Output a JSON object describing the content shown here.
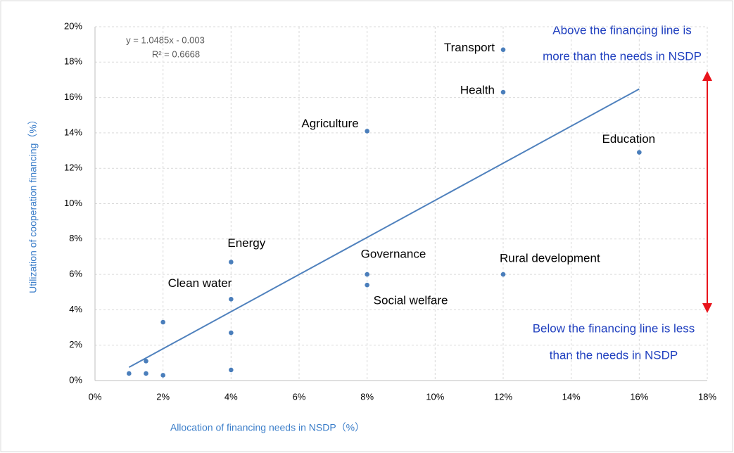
{
  "chart_data": {
    "type": "scatter",
    "x_label": "Allocation of financing needs in NSDP（%）",
    "y_label": "Utilization of cooperation financing（%）",
    "equation": "y = 1.0485x - 0.003",
    "r_squared": "R² = 0.6668",
    "annotation_above": [
      "Above the financing line is",
      "more than the needs in NSDP"
    ],
    "annotation_below": [
      "Below the financing line is less",
      "than the needs in NSDP"
    ],
    "color": "#4a7ebb",
    "trendline_color": "#4f81bd",
    "arrow_color": "#e8141b",
    "grid": true,
    "x": [
      12,
      12,
      8,
      16,
      4,
      8,
      12,
      8,
      4,
      2,
      4,
      1.5,
      1,
      1.5,
      2,
      4
    ],
    "values": [
      18.7,
      16.3,
      14.1,
      12.9,
      6.7,
      6.0,
      6.0,
      5.4,
      4.6,
      3.3,
      2.7,
      1.1,
      0.4,
      0.4,
      0.3,
      0.6
    ],
    "labels": [
      "Transport",
      "Health",
      "Agriculture",
      "Education",
      "Energy",
      "Governance",
      "Rural development",
      "Social welfare",
      "Clean water",
      null,
      null,
      null,
      null,
      null,
      null,
      null
    ],
    "trendline": {
      "x": [
        1,
        16
      ],
      "values": [
        0.75,
        16.48
      ]
    },
    "xlim": [
      0,
      18
    ],
    "ylim": [
      0,
      20
    ],
    "xticks": [
      {
        "value": 0,
        "label": "0%"
      },
      {
        "value": 2,
        "label": "2%"
      },
      {
        "value": 4,
        "label": "4%"
      },
      {
        "value": 6,
        "label": "6%"
      },
      {
        "value": 8,
        "label": "8%"
      },
      {
        "value": 10,
        "label": "10%"
      },
      {
        "value": 12,
        "label": "12%"
      },
      {
        "value": 14,
        "label": "14%"
      },
      {
        "value": 16,
        "label": "16%"
      },
      {
        "value": 18,
        "label": "18%"
      }
    ],
    "yticks": [
      {
        "value": 0,
        "label": "0%"
      },
      {
        "value": 2,
        "label": "2%"
      },
      {
        "value": 4,
        "label": "4%"
      },
      {
        "value": 6,
        "label": "6%"
      },
      {
        "value": 8,
        "label": "8%"
      },
      {
        "value": 10,
        "label": "10%"
      },
      {
        "value": 12,
        "label": "12%"
      },
      {
        "value": 14,
        "label": "14%"
      },
      {
        "value": 16,
        "label": "16%"
      },
      {
        "value": 18,
        "label": "18%"
      },
      {
        "value": 20,
        "label": "20%"
      }
    ]
  }
}
